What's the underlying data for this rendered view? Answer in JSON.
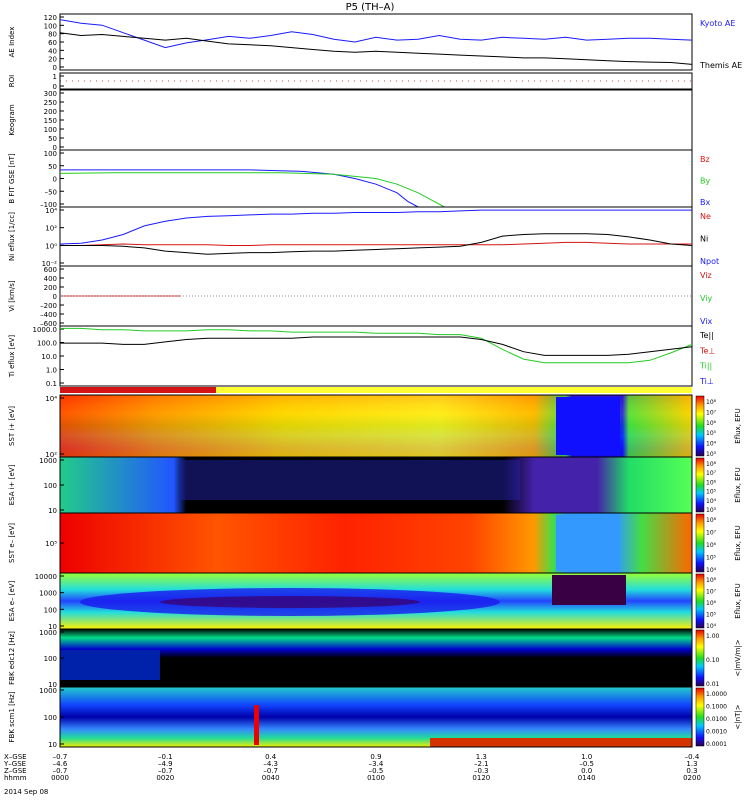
{
  "title": "P5 (TH–A)",
  "footer": {
    "rows": [
      {
        "label": "X–GSE",
        "values": [
          "–0.7",
          "–0.1",
          "0.4",
          "0.9",
          "1.3",
          "1.0",
          "–0.4"
        ]
      },
      {
        "label": "Y–GSE",
        "values": [
          "–4.6",
          "–4.9",
          "–4.3",
          "–3.4",
          "–2.1",
          "–0.5",
          "1.3"
        ]
      },
      {
        "label": "Z–GSE",
        "values": [
          "–0.7",
          "–0.7",
          "–0.7",
          "–0.5",
          "–0.3",
          "0.0",
          "0.3"
        ]
      },
      {
        "label": "hhmm",
        "values": [
          "0000",
          "0020",
          "0040",
          "0100",
          "0120",
          "0140",
          "0200"
        ]
      }
    ],
    "date": "2014 Sep 08"
  },
  "colors": {
    "blue": "#1a1aff",
    "black": "#000000",
    "red": "#d41414",
    "green": "#22cc22",
    "yellow": "#ffff33"
  },
  "chart_data": [
    {
      "panel": "ae",
      "type": "line",
      "ylabel": "AE Index",
      "ylim": [
        0,
        120
      ],
      "yticks": [
        "120",
        "100",
        "80",
        "60",
        "40",
        "20",
        "0"
      ],
      "legend": [
        {
          "label": "Kyoto AE",
          "color": "#1a1aff"
        },
        {
          "label": "Themis AE",
          "color": "#000000"
        }
      ],
      "x": [
        0,
        4,
        8,
        12,
        16,
        20,
        24,
        28,
        32,
        36,
        40,
        44,
        48,
        52,
        56,
        60,
        64,
        68,
        72,
        76,
        80,
        84,
        88,
        92,
        96,
        100,
        104,
        108,
        112,
        116,
        120
      ],
      "series": [
        {
          "name": "Kyoto AE",
          "color": "#1a1aff",
          "values": [
            108,
            100,
            96,
            80,
            64,
            48,
            58,
            65,
            72,
            68,
            74,
            82,
            76,
            66,
            60,
            70,
            64,
            66,
            74,
            66,
            64,
            70,
            68,
            66,
            70,
            64,
            66,
            68,
            68,
            66,
            64
          ]
        },
        {
          "name": "Themis AE",
          "color": "#000000",
          "values": [
            80,
            74,
            76,
            72,
            68,
            64,
            68,
            62,
            56,
            54,
            52,
            48,
            44,
            40,
            38,
            40,
            38,
            36,
            34,
            32,
            30,
            28,
            26,
            26,
            24,
            22,
            20,
            18,
            17,
            16,
            12
          ]
        }
      ]
    },
    {
      "panel": "roi",
      "type": "line",
      "ylabel": "ROI",
      "yticks": [
        "1",
        "0"
      ]
    },
    {
      "panel": "keogram",
      "type": "line",
      "ylabel": "Keogram",
      "ylim": [
        0,
        300
      ],
      "yticks": [
        "300",
        "250",
        "200",
        "150",
        "100",
        "50",
        "0"
      ]
    },
    {
      "panel": "bfit",
      "type": "line",
      "ylabel": "B FIT GSE [nT]",
      "ylim": [
        -100,
        100
      ],
      "yticks": [
        "100",
        "50",
        "0",
        "–50",
        "–100"
      ],
      "legend": [
        {
          "label": "Bz",
          "color": "#d41414"
        },
        {
          "label": "By",
          "color": "#22cc22"
        },
        {
          "label": "Bx",
          "color": "#1a1aff"
        }
      ],
      "series": [
        {
          "name": "Bx",
          "color": "#1a1aff",
          "x": [
            0,
            20,
            36,
            46,
            52,
            56,
            60,
            64,
            66,
            68
          ],
          "values": [
            30,
            30,
            30,
            25,
            15,
            0,
            -20,
            -50,
            -80,
            -100
          ]
        },
        {
          "name": "By",
          "color": "#22cc22",
          "x": [
            0,
            10,
            30,
            42,
            52,
            60,
            64,
            68,
            71,
            73
          ],
          "values": [
            18,
            20,
            20,
            20,
            15,
            0,
            -20,
            -50,
            -80,
            -100
          ]
        }
      ]
    },
    {
      "panel": "ni",
      "type": "line",
      "ylabel": "Ni eflux [1/cc]",
      "ylim_log10": [
        -2.5,
        5
      ],
      "yticks": [
        "10⁴",
        "10²",
        "10⁰",
        "10⁻²"
      ],
      "legend": [
        {
          "label": "Ne",
          "color": "#d41414"
        },
        {
          "label": "Ni",
          "color": "#000000"
        },
        {
          "label": "Npot",
          "color": "#1a1aff"
        }
      ],
      "x": [
        0,
        4,
        8,
        12,
        16,
        20,
        24,
        28,
        32,
        36,
        40,
        44,
        48,
        52,
        56,
        60,
        64,
        68,
        72,
        76,
        80,
        84,
        88,
        92,
        96,
        100,
        104,
        108,
        112,
        116,
        120
      ],
      "series": [
        {
          "name": "Npot",
          "color": "#1a1aff",
          "values": [
            0.3,
            0.4,
            0.8,
            1.5,
            2.6,
            3.2,
            3.6,
            3.8,
            3.9,
            4.0,
            4.1,
            4.1,
            4.2,
            4.2,
            4.3,
            4.3,
            4.3,
            4.4,
            4.4,
            4.5,
            4.6,
            4.6,
            4.6,
            4.6,
            4.6,
            4.6,
            4.6,
            4.6,
            4.6,
            4.6,
            4.6
          ]
        },
        {
          "name": "Ne",
          "color": "#d41414",
          "values": [
            0.1,
            0.1,
            0.2,
            0.3,
            0.2,
            0.2,
            0.2,
            0.2,
            0.1,
            0.1,
            0.2,
            0.2,
            0.2,
            0.2,
            0.2,
            0.2,
            0.2,
            0.2,
            0.2,
            0.2,
            0.2,
            0.2,
            0.3,
            0.4,
            0.5,
            0.5,
            0.4,
            0.3,
            0.3,
            0.3,
            0.3
          ]
        },
        {
          "name": "Ni",
          "color": "#000000",
          "values": [
            0.1,
            0.1,
            0.1,
            0.0,
            -0.2,
            -0.6,
            -0.8,
            -1.0,
            -0.9,
            -0.8,
            -0.8,
            -0.7,
            -0.6,
            -0.6,
            -0.5,
            -0.4,
            -0.3,
            -0.2,
            -0.1,
            0.0,
            0.5,
            1.3,
            1.5,
            1.6,
            1.6,
            1.6,
            1.5,
            1.2,
            0.8,
            0.3,
            0.1
          ]
        }
      ]
    },
    {
      "panel": "vi",
      "type": "line",
      "ylabel": "Vi [km/s]",
      "ylim": [
        -800,
        800
      ],
      "yticks": [
        "600",
        "400",
        "200",
        "0",
        "–200",
        "–400",
        "–600"
      ],
      "legend": [
        {
          "label": "Viz",
          "color": "#d41414"
        },
        {
          "label": "Viy",
          "color": "#22cc22"
        },
        {
          "label": "Vix",
          "color": "#1a1aff"
        }
      ],
      "series": [
        {
          "name": "Viz",
          "color": "#d41414",
          "x": [
            0,
            23
          ],
          "values": [
            0,
            0
          ]
        }
      ]
    },
    {
      "panel": "ti",
      "type": "line",
      "ylabel": "Ti eflux [eV]",
      "ylim_log10": [
        -1.2,
        3.7
      ],
      "yticks": [
        "1000.0",
        "100.0",
        "10.0",
        "1.0",
        "0.1"
      ],
      "legend": [
        {
          "label": "Te||",
          "color": "#000000"
        },
        {
          "label": "Te⊥",
          "color": "#d41414"
        },
        {
          "label": "Ti||",
          "color": "#22cc22"
        },
        {
          "label": "Ti⊥",
          "color": "#1a1aff"
        }
      ],
      "x": [
        0,
        4,
        8,
        12,
        16,
        20,
        24,
        28,
        32,
        36,
        40,
        44,
        48,
        52,
        56,
        60,
        64,
        68,
        72,
        76,
        80,
        84,
        88,
        92,
        96,
        100,
        104,
        108,
        112,
        116,
        120
      ],
      "series": [
        {
          "name": "Ti||",
          "color": "#22cc22",
          "values": [
            3.5,
            3.5,
            3.4,
            3.4,
            3.3,
            3.3,
            3.3,
            3.4,
            3.4,
            3.3,
            3.3,
            3.2,
            3.2,
            3.2,
            3.2,
            3.1,
            3.1,
            3.1,
            3.0,
            3.0,
            2.7,
            1.8,
            1.0,
            0.7,
            0.7,
            0.7,
            0.7,
            0.7,
            0.9,
            1.5,
            2.2
          ]
        },
        {
          "name": "Te||",
          "color": "#000000",
          "values": [
            2.3,
            2.3,
            2.3,
            2.2,
            2.2,
            2.4,
            2.6,
            2.7,
            2.7,
            2.7,
            2.7,
            2.7,
            2.8,
            2.8,
            2.8,
            2.8,
            2.8,
            2.8,
            2.8,
            2.8,
            2.6,
            2.2,
            1.6,
            1.3,
            1.3,
            1.3,
            1.3,
            1.4,
            1.6,
            1.8,
            2.0
          ]
        }
      ]
    },
    {
      "panel": "sst_ion",
      "type": "heatmap",
      "ylabel": "SST i+ [eV]",
      "yticks": [
        "10⁴",
        "10²"
      ],
      "colorbar": {
        "label": "Eflux, EFU",
        "ticks": [
          "10⁸",
          "10⁷",
          "10⁶",
          "10⁵",
          "10⁴",
          "10³"
        ]
      }
    },
    {
      "panel": "esa_ion",
      "type": "heatmap",
      "ylabel": "ESA i+ [eV]",
      "yticks": [
        "1000",
        "100",
        "10"
      ],
      "colorbar": {
        "label": "Eflux, EFU",
        "ticks": [
          "10⁸",
          "10⁷",
          "10⁶",
          "10⁵",
          "10⁴",
          "10³"
        ]
      }
    },
    {
      "panel": "sst_elec",
      "type": "heatmap",
      "ylabel": "SST e– [eV]",
      "yticks": [
        "10⁵"
      ],
      "colorbar": {
        "label": "Eflux, EFU",
        "ticks": [
          "10⁸",
          "10⁷",
          "10⁶",
          "10⁵",
          "10⁴"
        ]
      }
    },
    {
      "panel": "esa_elec",
      "type": "heatmap",
      "ylabel": "ESA e– [eV]",
      "yticks": [
        "10000",
        "1000",
        "100",
        "10"
      ],
      "colorbar": {
        "label": "Eflux, EFU",
        "ticks": [
          "10⁸",
          "10⁷",
          "10⁶",
          "10⁵",
          "10⁴"
        ]
      }
    },
    {
      "panel": "fbk_e",
      "type": "heatmap",
      "ylabel": "FBK edc12 [Hz]",
      "yticks": [
        "1000",
        "100",
        "10"
      ],
      "colorbar": {
        "label": "<|mV/m|>",
        "ticks": [
          "1.00",
          "0.10",
          "0.01"
        ]
      }
    },
    {
      "panel": "fbk_b",
      "type": "heatmap",
      "ylabel": "FBK scm1 [Hz]",
      "yticks": [
        "1000",
        "100",
        "10"
      ],
      "colorbar": {
        "label": "<|nT|>",
        "ticks": [
          "1.0000",
          "0.1000",
          "0.0100",
          "0.0010",
          "0.0001"
        ]
      }
    }
  ]
}
